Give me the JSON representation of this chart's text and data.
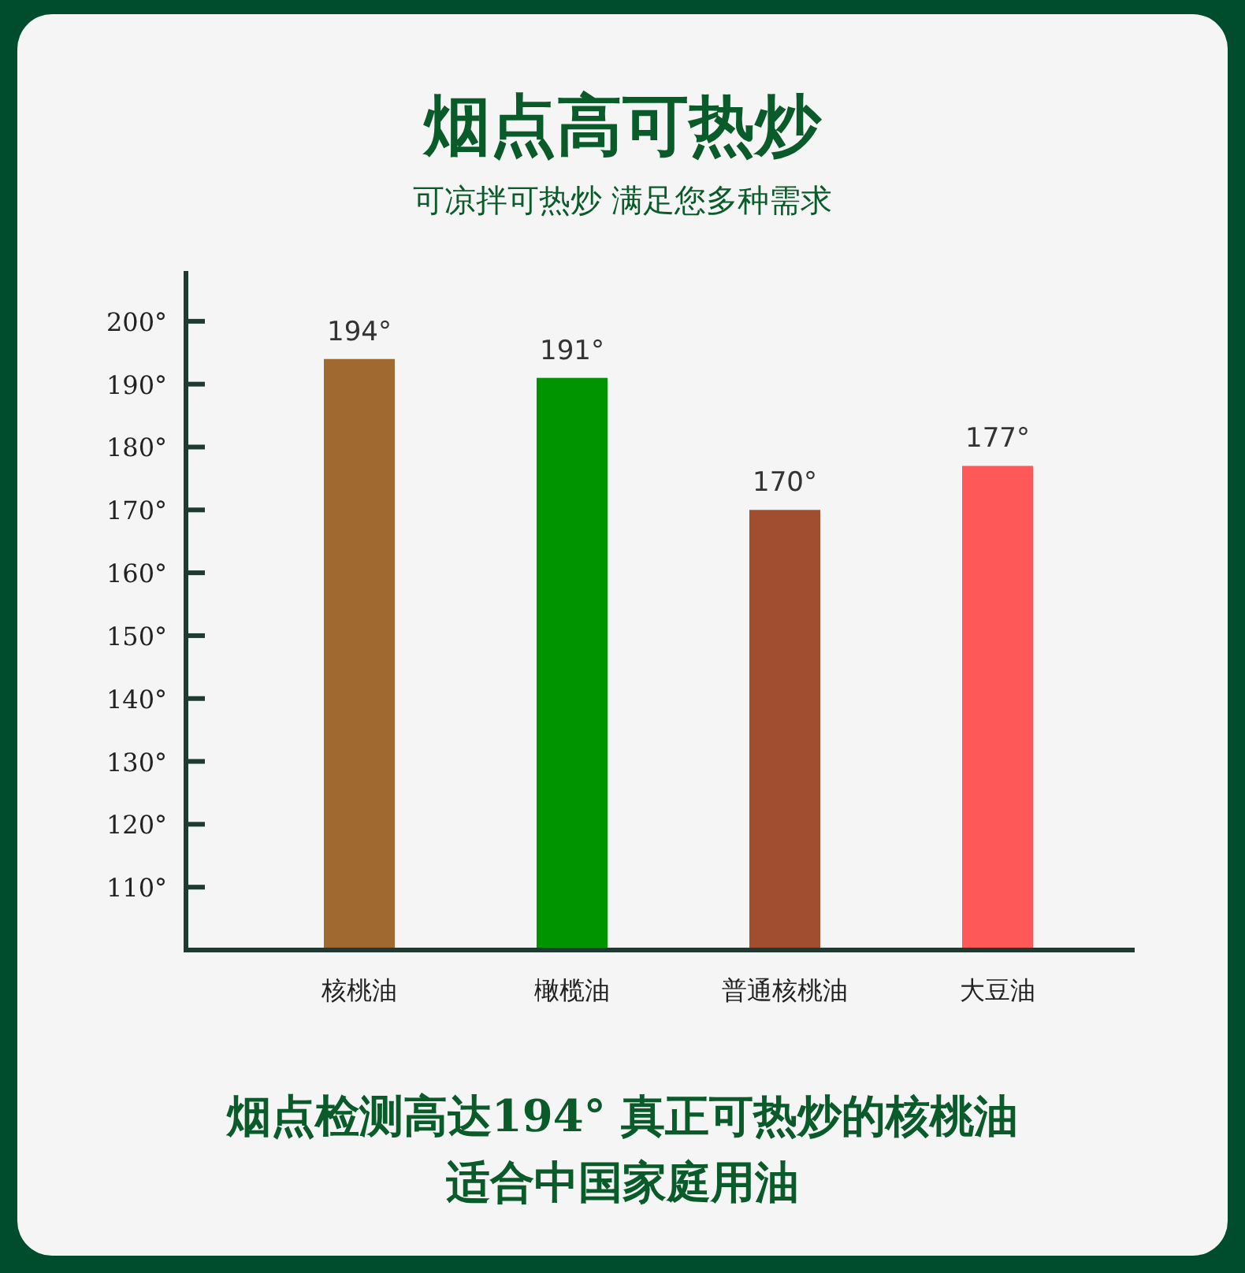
{
  "chart_data": {
    "type": "bar",
    "title": "烟点高可热炒",
    "subtitle": "可凉拌可热炒 满足您多种需求",
    "categories": [
      "核桃油",
      "橄榄油",
      "普通核桃油",
      "大豆油"
    ],
    "values": [
      194,
      191,
      170,
      177
    ],
    "colors": [
      "#a0692f",
      "#009400",
      "#a04e2f",
      "#ff5858"
    ],
    "value_labels": [
      "194°",
      "191°",
      "170°",
      "177°"
    ],
    "ylim": [
      100,
      208
    ],
    "yticks": [
      {
        "value": 110,
        "label": "110°"
      },
      {
        "value": 120,
        "label": "120°"
      },
      {
        "value": 130,
        "label": "130°"
      },
      {
        "value": 140,
        "label": "140°"
      },
      {
        "value": 150,
        "label": "150°"
      },
      {
        "value": 160,
        "label": "160°"
      },
      {
        "value": 170,
        "label": "170°"
      },
      {
        "value": 180,
        "label": "180°"
      },
      {
        "value": 190,
        "label": "190°"
      },
      {
        "value": 200,
        "label": "200°"
      }
    ],
    "annotations": [
      "烟点检测高达194° 真正可热炒的核桃油",
      "适合中国家庭用油"
    ]
  }
}
